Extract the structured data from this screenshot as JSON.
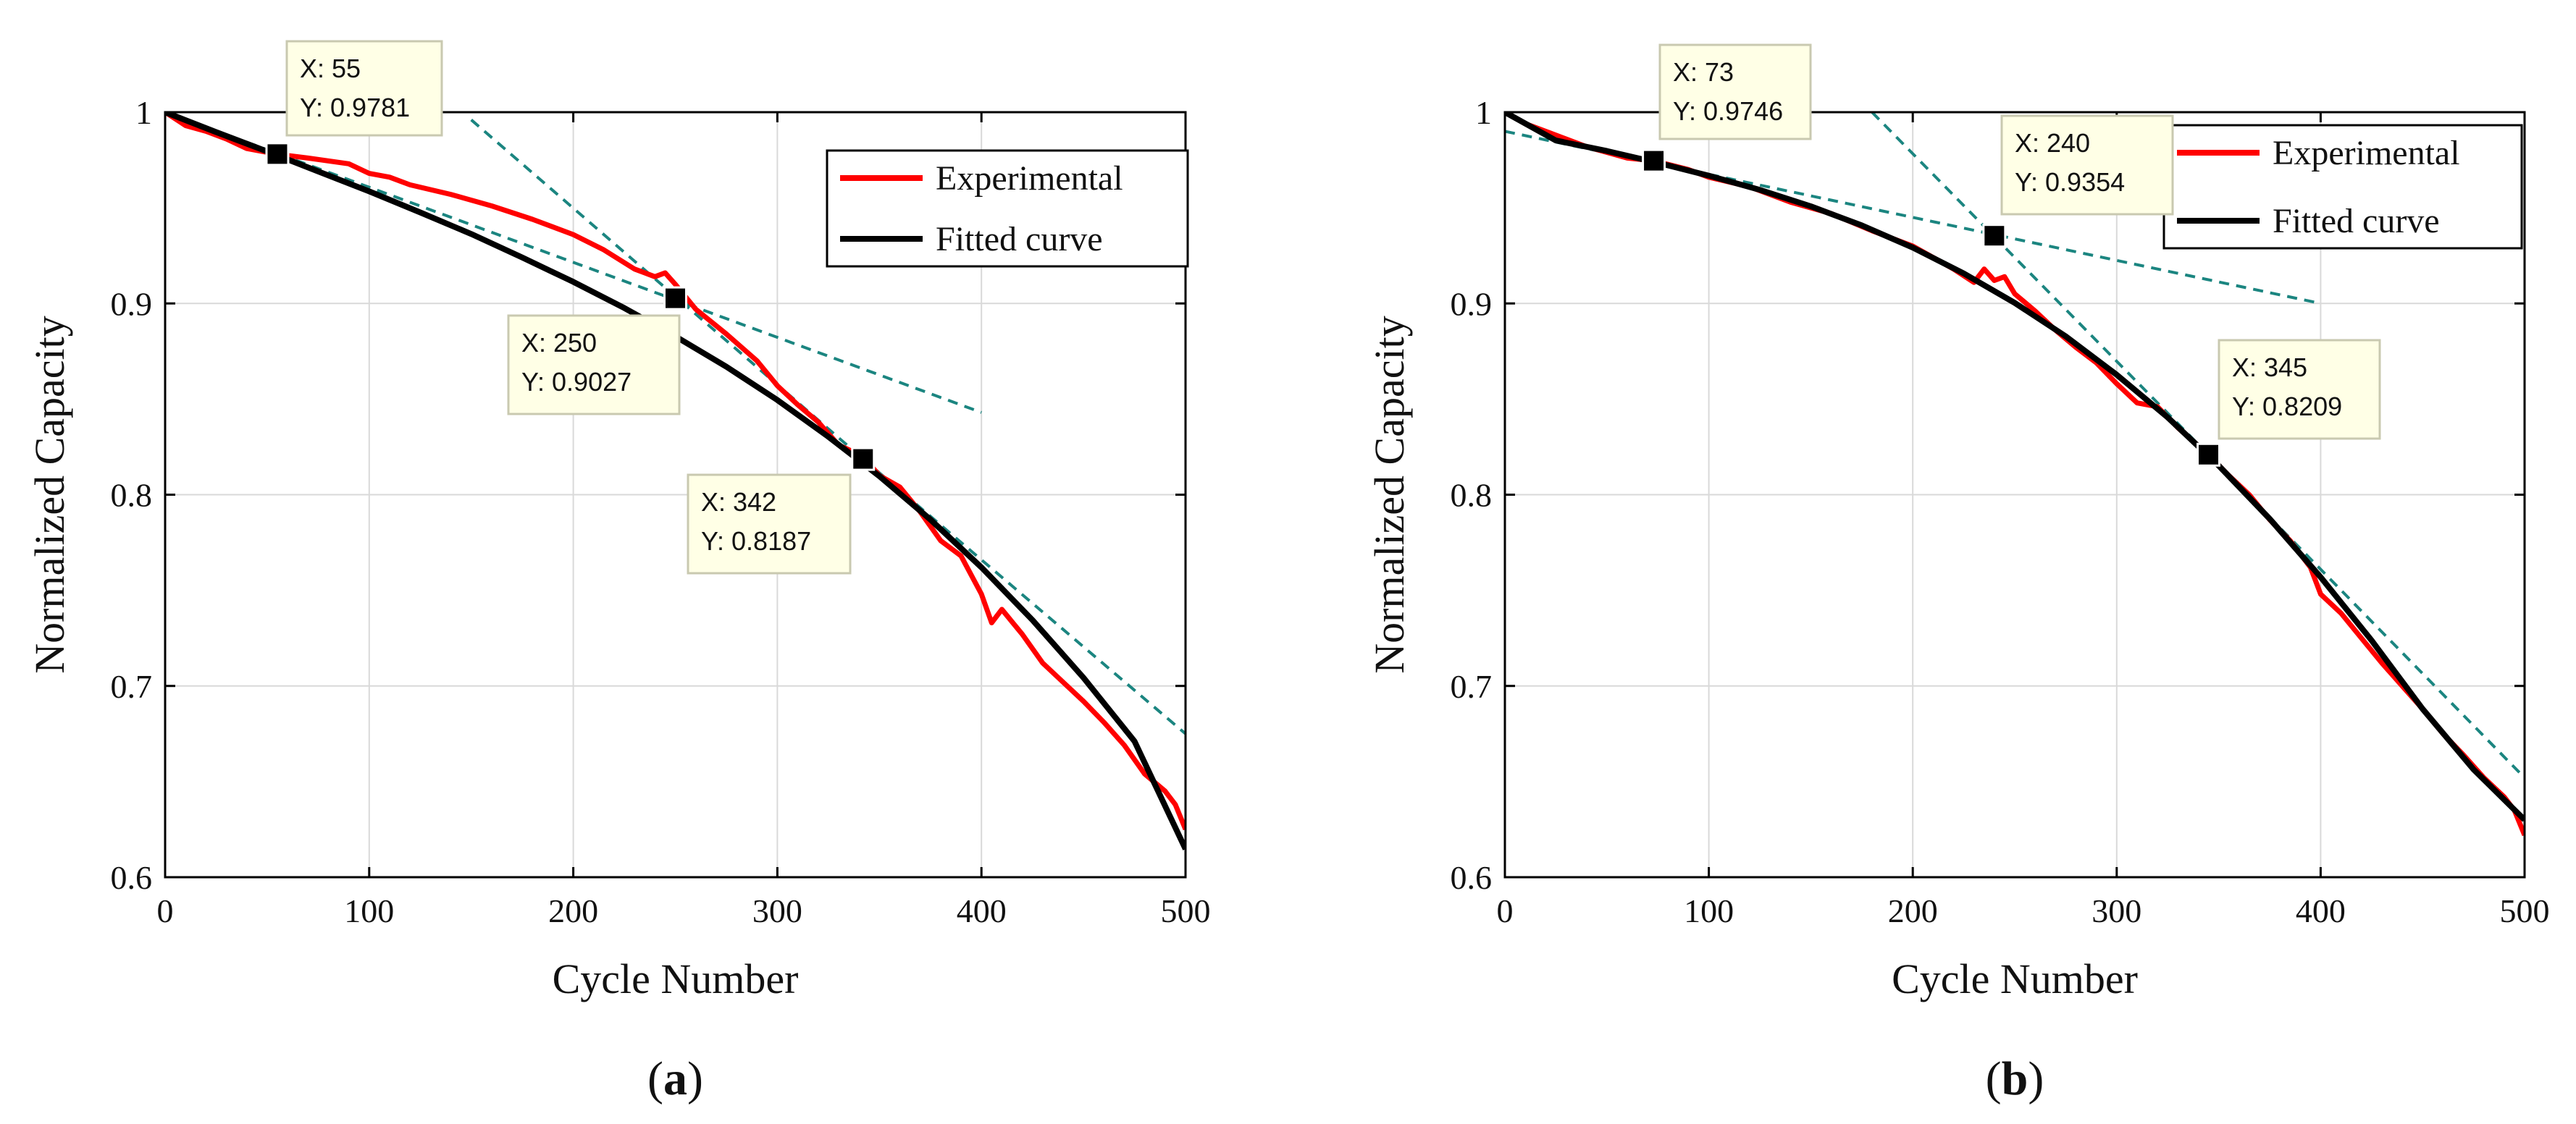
{
  "chart_data": [
    {
      "type": "line",
      "panel_label": "(a)",
      "panel_letter": "a",
      "xlabel": "Cycle Number",
      "ylabel": "Normalized Capacity",
      "xlim": [
        0,
        500
      ],
      "ylim": [
        0.6,
        1.0
      ],
      "x_ticks": [
        0,
        100,
        200,
        300,
        400,
        500
      ],
      "y_ticks": [
        0.6,
        0.7,
        0.8,
        0.9,
        1
      ],
      "grid": true,
      "legend_position": "top-right",
      "series": [
        {
          "name": "Experimental",
          "color": "#ff0000",
          "x": [
            0,
            10,
            20,
            30,
            40,
            55,
            70,
            90,
            100,
            110,
            120,
            140,
            160,
            180,
            200,
            215,
            230,
            240,
            245,
            250,
            260,
            275,
            290,
            300,
            310,
            320,
            330,
            342,
            350,
            360,
            370,
            380,
            390,
            400,
            405,
            410,
            420,
            430,
            440,
            450,
            460,
            470,
            480,
            490,
            495,
            500
          ],
          "y": [
            1.0,
            0.993,
            0.99,
            0.986,
            0.981,
            0.978,
            0.976,
            0.973,
            0.968,
            0.966,
            0.962,
            0.957,
            0.951,
            0.944,
            0.936,
            0.928,
            0.918,
            0.914,
            0.916,
            0.91,
            0.897,
            0.884,
            0.87,
            0.857,
            0.847,
            0.838,
            0.826,
            0.82,
            0.81,
            0.804,
            0.791,
            0.776,
            0.768,
            0.748,
            0.733,
            0.74,
            0.727,
            0.712,
            0.702,
            0.692,
            0.681,
            0.669,
            0.654,
            0.645,
            0.638,
            0.625
          ]
        },
        {
          "name": "Fitted curve",
          "color": "#000000",
          "x": [
            0,
            25,
            50,
            75,
            100,
            125,
            150,
            175,
            200,
            225,
            250,
            275,
            300,
            325,
            350,
            375,
            400,
            425,
            450,
            475,
            500
          ],
          "y": [
            1.0,
            0.9896,
            0.9795,
            0.969,
            0.9586,
            0.9476,
            0.9363,
            0.924,
            0.9113,
            0.8976,
            0.8828,
            0.8669,
            0.8495,
            0.8303,
            0.8097,
            0.787,
            0.762,
            0.7345,
            0.7043,
            0.6711,
            0.6147
          ]
        }
      ],
      "tangents": [
        {
          "x": [
            0,
            400
          ],
          "y": [
            1.0,
            0.843
          ]
        },
        {
          "x": [
            150,
            342
          ],
          "y": [
            0.996,
            0.8187
          ]
        },
        {
          "x": [
            342,
            500
          ],
          "y": [
            0.8187,
            0.675
          ]
        }
      ],
      "datatips": [
        {
          "x": 55,
          "y": 0.9781,
          "line1": "X: 55",
          "line2": "Y: 0.9781"
        },
        {
          "x": 250,
          "y": 0.9027,
          "line1": "X: 250",
          "line2": "Y: 0.9027"
        },
        {
          "x": 342,
          "y": 0.8187,
          "line1": "X: 342",
          "line2": "Y: 0.8187"
        }
      ]
    },
    {
      "type": "line",
      "panel_label": "(b)",
      "panel_letter": "b",
      "xlabel": "Cycle Number",
      "ylabel": "Normalized Capacity",
      "xlim": [
        0,
        500
      ],
      "ylim": [
        0.6,
        1.0
      ],
      "x_ticks": [
        0,
        100,
        200,
        300,
        400,
        500
      ],
      "y_ticks": [
        0.6,
        0.7,
        0.8,
        0.9,
        1
      ],
      "grid": true,
      "legend_position": "top-right",
      "series": [
        {
          "name": "Experimental",
          "color": "#ff0000",
          "x": [
            0,
            10,
            20,
            30,
            40,
            50,
            60,
            73,
            90,
            100,
            120,
            140,
            160,
            180,
            200,
            210,
            220,
            230,
            235,
            240,
            245,
            250,
            260,
            270,
            280,
            290,
            300,
            310,
            320,
            330,
            345,
            355,
            365,
            375,
            385,
            395,
            400,
            410,
            420,
            430,
            440,
            450,
            460,
            470,
            480,
            490,
            495,
            500
          ],
          "y": [
            1.0,
            0.994,
            0.99,
            0.986,
            0.982,
            0.979,
            0.976,
            0.9746,
            0.97,
            0.966,
            0.961,
            0.953,
            0.947,
            0.938,
            0.93,
            0.924,
            0.918,
            0.911,
            0.918,
            0.912,
            0.914,
            0.905,
            0.896,
            0.886,
            0.877,
            0.869,
            0.858,
            0.848,
            0.846,
            0.835,
            0.8209,
            0.81,
            0.8,
            0.787,
            0.776,
            0.762,
            0.748,
            0.738,
            0.725,
            0.712,
            0.7,
            0.688,
            0.675,
            0.664,
            0.652,
            0.642,
            0.635,
            0.622
          ]
        },
        {
          "name": "Fitted curve",
          "color": "#000000",
          "x": [
            0,
            25,
            50,
            75,
            100,
            125,
            150,
            175,
            200,
            225,
            250,
            275,
            300,
            325,
            350,
            375,
            400,
            425,
            450,
            475,
            500
          ],
          "y": [
            1.0,
            0.9852,
            0.9797,
            0.9735,
            0.9668,
            0.9594,
            0.9508,
            0.9408,
            0.9292,
            0.9157,
            0.9003,
            0.8828,
            0.8627,
            0.8404,
            0.8152,
            0.7874,
            0.7569,
            0.7238,
            0.688,
            0.6563,
            0.63
          ]
        }
      ],
      "tangents": [
        {
          "x": [
            0,
            400
          ],
          "y": [
            0.99,
            0.9
          ]
        },
        {
          "x": [
            180,
            345
          ],
          "y": [
            1.0,
            0.8209
          ]
        },
        {
          "x": [
            345,
            500
          ],
          "y": [
            0.8209,
            0.652
          ]
        }
      ],
      "datatips": [
        {
          "x": 73,
          "y": 0.9746,
          "line1": "X: 73",
          "line2": "Y: 0.9746"
        },
        {
          "x": 240,
          "y": 0.9354,
          "line1": "X: 240",
          "line2": "Y: 0.9354"
        },
        {
          "x": 345,
          "y": 0.8209,
          "line1": "X: 345",
          "line2": "Y: 0.8209"
        }
      ]
    }
  ],
  "colors": {
    "tangent": "#1b8580",
    "grid": "#d9d9d9",
    "tip_background": "#ffffe6",
    "tip_border": "#c9c9b0"
  }
}
